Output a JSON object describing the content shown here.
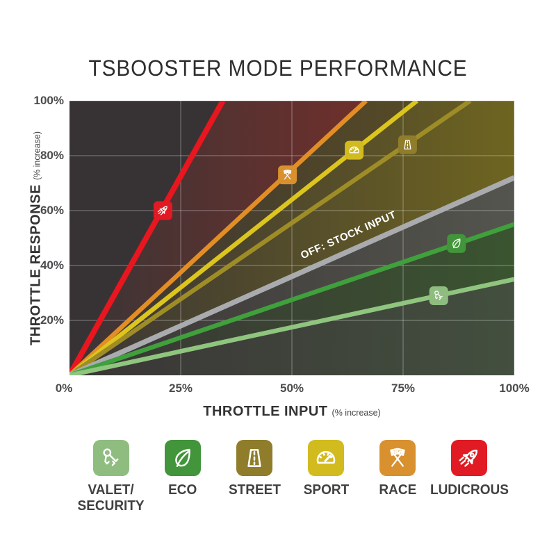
{
  "title": "TSBOOSTER MODE PERFORMANCE",
  "chart_data": {
    "type": "line",
    "title": "TSBOOSTER MODE PERFORMANCE",
    "xlabel": "THROTTLE INPUT",
    "xlabel_sub": "(% increase)",
    "ylabel": "THROTTLE RESPONSE",
    "ylabel_sub": "(% increase)",
    "xlim": [
      0,
      100
    ],
    "ylim": [
      0,
      100
    ],
    "grid": true,
    "x_ticks": [
      "0%",
      "25%",
      "50%",
      "75%",
      "100%"
    ],
    "x_tick_values": [
      0,
      25,
      50,
      75,
      100
    ],
    "y_ticks": [
      "20%",
      "40%",
      "60%",
      "80%",
      "100%"
    ],
    "y_tick_values": [
      20,
      40,
      60,
      80,
      100
    ],
    "series": [
      {
        "name": "LUDICROUS",
        "icon": "rocket-icon",
        "slope": 2.9,
        "line_color": "#E8161E",
        "badge_color": "#E01B23",
        "width": 8,
        "badge_at": {
          "x": 21,
          "y": 60
        },
        "band_below": "#6F2F2B"
      },
      {
        "name": "RACE",
        "icon": "flags-icon",
        "slope": 1.5,
        "line_color": "#E28E25",
        "badge_color": "#D9902F",
        "width": 6.5,
        "badge_at": {
          "x": 49,
          "y": 73
        },
        "band_below": "#564A25"
      },
      {
        "name": "SPORT",
        "icon": "gauge-icon",
        "slope": 1.28,
        "line_color": "#DCC51D",
        "badge_color": "#D2BB1E",
        "width": 6.5,
        "badge_at": {
          "x": 64,
          "y": 82
        },
        "band_below": "#645A23"
      },
      {
        "name": "STREET",
        "icon": "road-icon",
        "slope": 1.11,
        "line_color": "#9E8D26",
        "badge_color": "#8F7D2B",
        "width": 6.5,
        "badge_at": {
          "x": 76,
          "y": 84
        },
        "band_below": "#6E6420"
      },
      {
        "name": "OFF: STOCK INPUT",
        "icon": null,
        "slope": 0.72,
        "line_color": "#A9ABAE",
        "width": 7.5,
        "band_below": "#54554E",
        "line_label": {
          "text": "OFF: STOCK INPUT",
          "x": 63,
          "y": 50,
          "angle": -24
        }
      },
      {
        "name": "ECO",
        "icon": "leaf-icon",
        "slope": 0.55,
        "line_color": "#3FA03C",
        "badge_color": "#42953A",
        "width": 6.5,
        "badge_at": {
          "x": 87,
          "y": 48
        },
        "band_below": "#3A5430"
      },
      {
        "name": "VALET/SECURITY",
        "icon": "keys-icon",
        "slope": 0.35,
        "line_color": "#8FC57E",
        "badge_color": "#8FBD80",
        "width": 6.5,
        "badge_at": {
          "x": 83,
          "y": 29
        },
        "band_below": "#434F3F"
      }
    ]
  },
  "legend": {
    "items": [
      {
        "label_lines": [
          "VALET/",
          "SECURITY"
        ],
        "icon": "keys-icon",
        "color": "#8FBD80"
      },
      {
        "label_lines": [
          "ECO"
        ],
        "icon": "leaf-icon",
        "color": "#42953A"
      },
      {
        "label_lines": [
          "STREET"
        ],
        "icon": "road-icon",
        "color": "#8F7D2B"
      },
      {
        "label_lines": [
          "SPORT"
        ],
        "icon": "gauge-icon",
        "color": "#D2BB1E"
      },
      {
        "label_lines": [
          "RACE"
        ],
        "icon": "flags-icon",
        "color": "#D9902F"
      },
      {
        "label_lines": [
          "LUDICROUS"
        ],
        "icon": "rocket-icon",
        "color": "#E01B23"
      }
    ]
  },
  "colors": {
    "plot_bg": "#373334",
    "band_fade_start": "#3A3536",
    "grid": "rgba(255,255,255,0.3)",
    "title_text": "#2d2d2d",
    "tick_text": "#4b4b4d",
    "axis_text": "#333333",
    "legend_text": "#414042",
    "stock_label_text": "#ffffff"
  }
}
